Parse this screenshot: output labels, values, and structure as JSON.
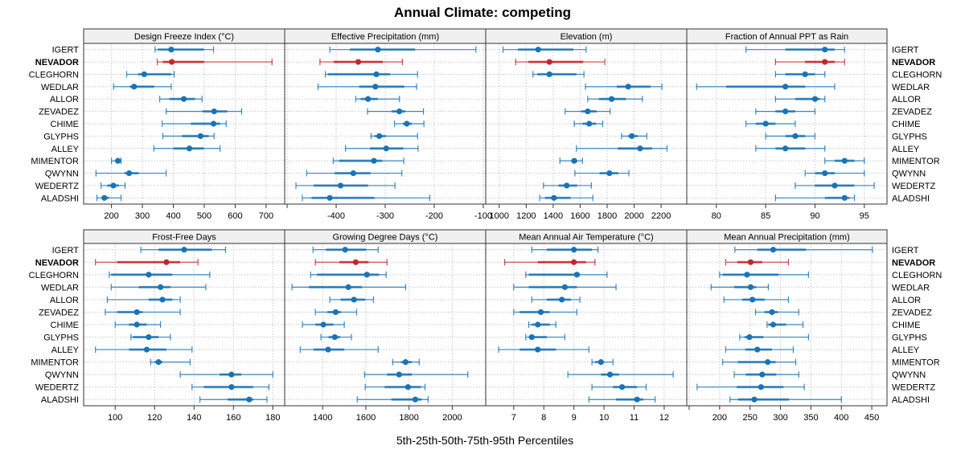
{
  "chart_data": {
    "type": "scatter",
    "subtype": "percentile-dotplot",
    "title": "Annual Climate: competing",
    "xlabel": "5th-25th-50th-75th-95th Percentiles",
    "ylabel": "",
    "grid": true,
    "highlight_site": "NEVADOR",
    "colors": {
      "default": "#1a73b5",
      "highlight": "#c0272d"
    },
    "percentiles": [
      "5th",
      "25th",
      "50th",
      "75th",
      "95th"
    ],
    "sites": [
      "IGERT",
      "NEVADOR",
      "CLEGHORN",
      "WEDLAR",
      "ALLOR",
      "ZEVADEZ",
      "CHIME",
      "GLYPHS",
      "ALLEY",
      "MIMENTOR",
      "QWYNN",
      "WEDERTZ",
      "ALADSHI"
    ],
    "panels": [
      {
        "name": "Design Freeze Index (°C)",
        "xlim": [
          110,
          760
        ],
        "ticks": [
          200,
          300,
          400,
          500,
          600,
          700
        ],
        "tick_labels": [
          "200",
          "300",
          "400",
          "500",
          "600",
          "700"
        ],
        "values": [
          [
            341,
            350,
            393,
            499,
            530
          ],
          [
            348,
            366,
            395,
            499,
            719
          ],
          [
            249,
            286,
            306,
            393,
            403
          ],
          [
            207,
            259,
            273,
            338,
            393
          ],
          [
            356,
            387,
            434,
            470,
            493
          ],
          [
            377,
            494,
            532,
            574,
            621
          ],
          [
            364,
            457,
            530,
            551,
            571
          ],
          [
            366,
            429,
            488,
            514,
            532
          ],
          [
            337,
            400,
            452,
            499,
            551
          ],
          [
            200,
            211,
            221,
            226,
            231
          ],
          [
            150,
            242,
            257,
            288,
            377
          ],
          [
            166,
            187,
            206,
            224,
            244
          ],
          [
            153,
            168,
            177,
            192,
            231
          ]
        ]
      },
      {
        "name": "Effective Precipitation (mm)",
        "xlim": [
          -505,
          -95
        ],
        "ticks": [
          -500,
          -400,
          -300,
          -200,
          -100
        ],
        "tick_labels": [
          "",
          "-400",
          "-300",
          "-200",
          "-100"
        ],
        "values": [
          [
            -413,
            -372,
            -315,
            -239,
            -115
          ],
          [
            -433,
            -405,
            -355,
            -305,
            -265
          ],
          [
            -422,
            -417,
            -318,
            -290,
            -234
          ],
          [
            -437,
            -353,
            -320,
            -261,
            -236
          ],
          [
            -360,
            -350,
            -335,
            -315,
            -271
          ],
          [
            -336,
            -287,
            -271,
            -259,
            -222
          ],
          [
            -281,
            -264,
            -256,
            -246,
            -221
          ],
          [
            -329,
            -321,
            -312,
            -299,
            -234
          ],
          [
            -381,
            -331,
            -298,
            -263,
            -233
          ],
          [
            -406,
            -394,
            -323,
            -306,
            -262
          ],
          [
            -460,
            -403,
            -365,
            -330,
            -266
          ],
          [
            -482,
            -446,
            -391,
            -335,
            -280
          ],
          [
            -469,
            -450,
            -413,
            -322,
            -209
          ]
        ]
      },
      {
        "name": "Elevation (m)",
        "xlim": [
          900,
          2390
        ],
        "ticks": [
          1000,
          1200,
          1400,
          1600,
          1800,
          2000,
          2200
        ],
        "tick_labels": [
          "1000",
          "1200",
          "1400",
          "1600",
          "1800",
          "2000",
          "2200"
        ],
        "values": [
          [
            1028,
            1139,
            1289,
            1550,
            1644
          ],
          [
            1122,
            1217,
            1372,
            1622,
            1783
          ],
          [
            1250,
            1283,
            1372,
            1572,
            1628
          ],
          [
            1639,
            1872,
            1956,
            2122,
            2206
          ],
          [
            1656,
            1739,
            1833,
            1939,
            2061
          ],
          [
            1489,
            1606,
            1656,
            1722,
            1822
          ],
          [
            1556,
            1617,
            1667,
            1717,
            1767
          ],
          [
            1906,
            1956,
            1983,
            2028,
            2094
          ],
          [
            1572,
            1878,
            2044,
            2133,
            2244
          ],
          [
            1450,
            1533,
            1556,
            1578,
            1617
          ],
          [
            1561,
            1744,
            1817,
            1883,
            1961
          ],
          [
            1328,
            1439,
            1500,
            1578,
            1683
          ],
          [
            1300,
            1339,
            1406,
            1528,
            1694
          ]
        ]
      },
      {
        "name": "Fraction of Annual PPT as Rain",
        "xlim": [
          77,
          97.3
        ],
        "ticks": [
          80,
          85,
          90,
          95
        ],
        "tick_labels": [
          "80",
          "85",
          "90",
          "95"
        ],
        "values": [
          [
            83,
            87,
            91,
            92,
            93
          ],
          [
            86,
            89,
            91,
            92,
            93
          ],
          [
            86,
            87,
            89,
            90,
            91
          ],
          [
            78,
            81,
            87,
            89,
            92
          ],
          [
            86,
            88,
            90,
            90.5,
            91
          ],
          [
            84,
            86,
            87,
            88,
            90
          ],
          [
            83,
            84,
            85,
            86,
            88
          ],
          [
            85,
            87,
            88,
            89,
            90
          ],
          [
            84,
            86,
            87,
            89,
            91
          ],
          [
            91,
            92,
            93,
            94,
            95
          ],
          [
            89,
            90,
            91,
            92,
            95
          ],
          [
            88,
            90,
            92,
            94,
            96
          ],
          [
            86,
            91,
            93,
            93.5,
            94
          ]
        ]
      },
      {
        "name": "Frost-Free Days",
        "xlim": [
          84,
          186
        ],
        "ticks": [
          100,
          120,
          140,
          160,
          180
        ],
        "tick_labels": [
          "100",
          "120",
          "140",
          "160",
          "180"
        ],
        "values": [
          [
            113,
            122,
            135,
            149,
            156
          ],
          [
            90,
            101,
            126,
            133,
            142
          ],
          [
            97,
            98,
            117,
            129,
            148
          ],
          [
            98,
            112,
            123,
            128,
            146
          ],
          [
            96,
            117,
            124,
            129,
            133
          ],
          [
            95,
            101,
            111,
            114,
            133
          ],
          [
            100,
            107,
            111,
            116,
            123
          ],
          [
            108,
            109,
            117,
            122,
            128
          ],
          [
            90,
            107,
            116,
            126,
            139
          ],
          [
            118,
            120,
            122,
            124,
            138
          ],
          [
            133,
            153,
            159,
            164,
            180
          ],
          [
            139,
            145,
            159,
            170,
            178
          ],
          [
            143,
            157,
            168,
            170,
            177
          ]
        ]
      },
      {
        "name": "Growing Degree Days (°C)",
        "xlim": [
          1224,
          2155
        ],
        "ticks": [
          1400,
          1600,
          1800,
          2000
        ],
        "tick_labels": [
          "1400",
          "1600",
          "1800",
          "2000"
        ],
        "values": [
          [
            1355,
            1415,
            1504,
            1601,
            1657
          ],
          [
            1366,
            1478,
            1553,
            1612,
            1698
          ],
          [
            1344,
            1374,
            1605,
            1661,
            1694
          ],
          [
            1258,
            1336,
            1519,
            1582,
            1784
          ],
          [
            1433,
            1483,
            1545,
            1597,
            1635
          ],
          [
            1366,
            1422,
            1460,
            1485,
            1557
          ],
          [
            1306,
            1366,
            1403,
            1450,
            1500
          ],
          [
            1392,
            1427,
            1456,
            1481,
            1533
          ],
          [
            1296,
            1358,
            1425,
            1500,
            1657
          ],
          [
            1724,
            1763,
            1784,
            1813,
            1847
          ],
          [
            1594,
            1698,
            1754,
            1813,
            2072
          ],
          [
            1597,
            1687,
            1795,
            1855,
            1874
          ],
          [
            1560,
            1718,
            1829,
            1858,
            1888
          ]
        ]
      },
      {
        "name": "Mean Annual Air Temperature (°C)",
        "xlim": [
          6.07,
          12.75
        ],
        "ticks": [
          7,
          8,
          9,
          10,
          11,
          12
        ],
        "tick_labels": [
          "7",
          "8",
          "9",
          "10",
          "11",
          "12"
        ],
        "values": [
          [
            7.6,
            8.1,
            9.0,
            9.6,
            9.8
          ],
          [
            6.7,
            7.8,
            9.0,
            9.4,
            9.7
          ],
          [
            7.4,
            7.5,
            9.1,
            9.2,
            10.1
          ],
          [
            7.0,
            7.5,
            8.7,
            9.1,
            10.4
          ],
          [
            7.6,
            8.1,
            8.6,
            8.9,
            9.2
          ],
          [
            7.0,
            7.2,
            7.9,
            8.2,
            9.1
          ],
          [
            7.5,
            7.6,
            7.8,
            8.2,
            8.4
          ],
          [
            7.4,
            7.5,
            7.6,
            8.1,
            8.7
          ],
          [
            6.5,
            7.2,
            7.8,
            8.4,
            9.5
          ],
          [
            9.6,
            9.7,
            9.9,
            10.0,
            10.3
          ],
          [
            8.8,
            9.9,
            10.2,
            10.5,
            12.3
          ],
          [
            9.6,
            10.3,
            10.6,
            11.1,
            11.4
          ],
          [
            9.5,
            10.4,
            11.1,
            11.3,
            11.7
          ]
        ]
      },
      {
        "name": "Mean Annual Precipitation (mm)",
        "xlim": [
          146,
          475
        ],
        "ticks": [
          150,
          200,
          250,
          300,
          350,
          400,
          450
        ],
        "tick_labels": [
          "",
          "200",
          "250",
          "300",
          "350",
          "400",
          "450"
        ],
        "values": [
          [
            225,
            262,
            288,
            342,
            451
          ],
          [
            210,
            229,
            251,
            270,
            313
          ],
          [
            200,
            205,
            245,
            297,
            346
          ],
          [
            186,
            224,
            251,
            260,
            280
          ],
          [
            207,
            237,
            254,
            274,
            313
          ],
          [
            259,
            274,
            286,
            296,
            330
          ],
          [
            278,
            280,
            288,
            309,
            337
          ],
          [
            233,
            241,
            249,
            272,
            346
          ],
          [
            210,
            242,
            262,
            286,
            321
          ],
          [
            205,
            230,
            279,
            292,
            325
          ],
          [
            224,
            243,
            270,
            293,
            330
          ],
          [
            163,
            228,
            268,
            305,
            339
          ],
          [
            217,
            230,
            257,
            314,
            400
          ]
        ]
      }
    ]
  }
}
